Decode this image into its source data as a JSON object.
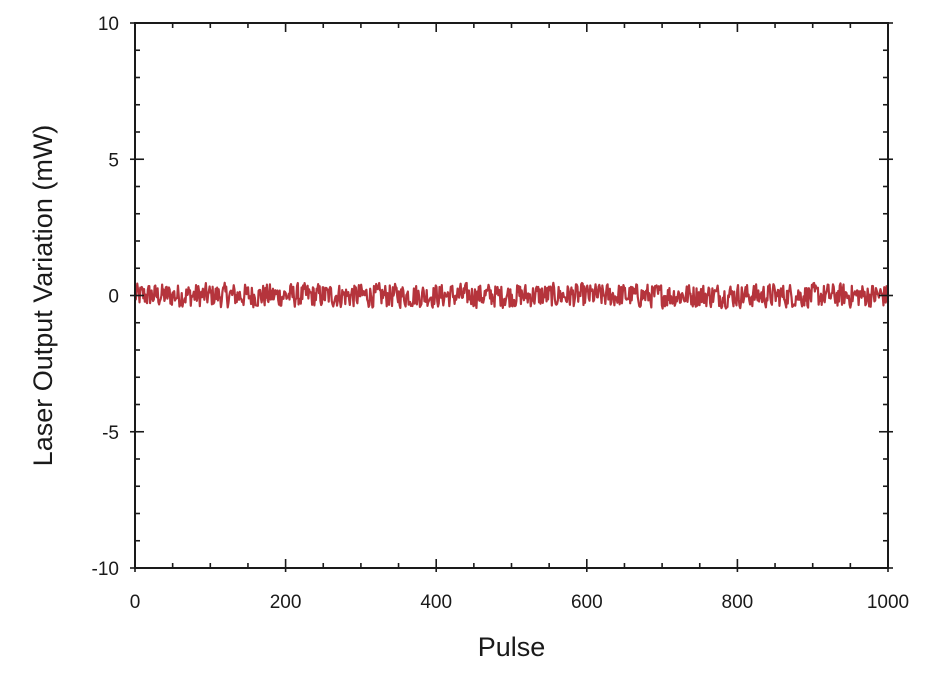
{
  "chart_data": {
    "type": "line",
    "title": "",
    "xlabel": "Pulse",
    "ylabel": "Laser Output Variation (mW)",
    "xlim": [
      0,
      1000
    ],
    "ylim": [
      -10,
      10
    ],
    "x_ticks": [
      0,
      200,
      400,
      600,
      800,
      1000
    ],
    "y_ticks": [
      -10,
      -5,
      0,
      5,
      10
    ],
    "x_tick_labels": [
      "0",
      "200",
      "400",
      "600",
      "800",
      "1000"
    ],
    "y_tick_labels": [
      "-10",
      "-5",
      "0",
      "5",
      "10"
    ],
    "x_minor_step": 50,
    "y_minor_step": 1,
    "grid": false,
    "legend": "none",
    "series": [
      {
        "color": "#b5343c",
        "x_start": 0,
        "x_end": 1000,
        "points": 1000,
        "mean": 0.0,
        "range": [
          -0.5,
          0.5
        ]
      }
    ]
  }
}
